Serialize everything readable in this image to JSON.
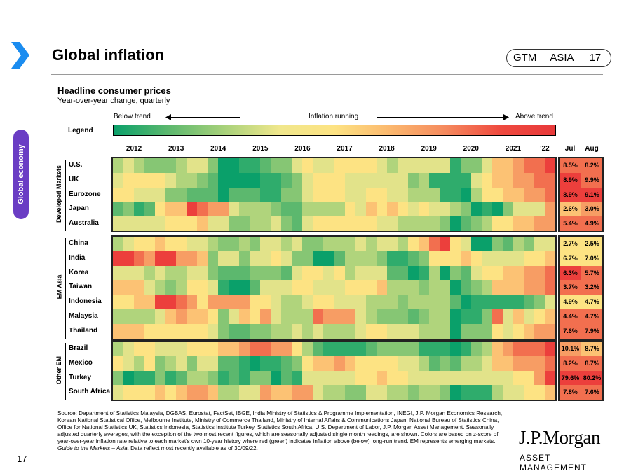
{
  "page": {
    "title": "Global inflation",
    "badge": [
      "GTM",
      "ASIA",
      "17"
    ],
    "side_tab": "Global economy",
    "page_number": "17",
    "logo": "J.P.Morgan",
    "logo_sub": "ASSET MANAGEMENT"
  },
  "chart_data": {
    "type": "heatmap",
    "title": "Headline consumer prices",
    "subtitle": "Year-over-year change, quarterly",
    "legend": {
      "label": "Legend",
      "left_text": "Below trend",
      "center_text": "Inflation running",
      "right_text": "Above trend",
      "scale_note": "0 = deep green (far below trend), 5 = neutral yellow, 10 = deep red (far above trend)"
    },
    "year_labels": [
      "2012",
      "2013",
      "2014",
      "2015",
      "2016",
      "2017",
      "2018",
      "2019",
      "2020",
      "2021",
      "'22"
    ],
    "recent_headers": [
      "Jul",
      "Aug"
    ],
    "columns": "Quarterly 2012Q1-2022Q2 (42 quarters)",
    "groups": [
      {
        "name": "Developed Markets",
        "rows": [
          {
            "name": "U.S.",
            "levels": [
              4,
              5,
              4,
              3,
              3,
              3,
              4,
              5,
              5,
              3,
              0,
              0,
              1,
              1,
              2,
              3,
              3,
              5,
              6,
              5,
              5,
              6,
              6,
              6,
              6,
              5,
              4,
              5,
              5,
              5,
              5,
              5,
              1,
              3,
              3,
              5,
              7,
              7,
              8,
              9,
              9,
              10
            ],
            "jul": "8.5%",
            "aug": "8.2%",
            "jul_level": 9,
            "aug_level": 9
          },
          {
            "name": "UK",
            "levels": [
              5,
              6,
              6,
              6,
              6,
              5,
              4,
              4,
              3,
              2,
              0,
              0,
              0,
              0,
              1,
              1,
              2,
              3,
              5,
              6,
              6,
              6,
              5,
              5,
              5,
              5,
              5,
              5,
              3,
              4,
              1,
              1,
              1,
              1,
              5,
              6,
              7,
              7,
              8,
              8,
              9,
              9
            ],
            "jul": "8.9%",
            "aug": "9.9%",
            "jul_level": 10,
            "aug_level": 9
          },
          {
            "name": "Eurozone",
            "levels": [
              6,
              6,
              5,
              5,
              5,
              3,
              3,
              2,
              2,
              2,
              0,
              2,
              2,
              2,
              1,
              1,
              3,
              3,
              5,
              6,
              6,
              6,
              5,
              5,
              6,
              6,
              5,
              5,
              4,
              4,
              4,
              1,
              1,
              0,
              4,
              6,
              6,
              7,
              7,
              8,
              8,
              9
            ],
            "jul": "8.9%",
            "aug": "9.1%",
            "jul_level": 10,
            "aug_level": 10
          },
          {
            "name": "Japan",
            "levels": [
              2,
              3,
              1,
              2,
              6,
              7,
              7,
              10,
              9,
              8,
              8,
              5,
              4,
              4,
              4,
              3,
              2,
              2,
              4,
              4,
              4,
              4,
              6,
              5,
              7,
              6,
              7,
              6,
              5,
              6,
              5,
              5,
              4,
              3,
              0,
              1,
              0,
              3,
              5,
              5,
              5,
              8
            ],
            "jul": "2.6%",
            "aug": "3.0%",
            "jul_level": 7,
            "aug_level": 8
          },
          {
            "name": "Australia",
            "levels": [
              5,
              5,
              5,
              5,
              5,
              6,
              6,
              6,
              7,
              5,
              5,
              3,
              3,
              4,
              4,
              5,
              3,
              2,
              5,
              6,
              6,
              6,
              6,
              6,
              6,
              5,
              5,
              4,
              4,
              4,
              4,
              3,
              0,
              2,
              3,
              4,
              6,
              6,
              7,
              7,
              8,
              8
            ],
            "jul": "5.4%",
            "aug": "4.9%",
            "jul_level": 9,
            "aug_level": 9
          }
        ]
      },
      {
        "name": "EM Asia",
        "rows": [
          {
            "name": "China",
            "levels": [
              4,
              5,
              6,
              6,
              7,
              6,
              6,
              5,
              5,
              4,
              3,
              3,
              4,
              3,
              5,
              5,
              4,
              5,
              3,
              3,
              4,
              4,
              4,
              5,
              4,
              5,
              5,
              4,
              6,
              7,
              9,
              10,
              6,
              5,
              0,
              0,
              3,
              2,
              4,
              3,
              5,
              5
            ],
            "jul": "2.7%",
            "aug": "2.5%",
            "jul_level": 6,
            "aug_level": 6
          },
          {
            "name": "India",
            "levels": [
              10,
              10,
              9,
              8,
              10,
              10,
              8,
              8,
              7,
              3,
              5,
              5,
              3,
              5,
              5,
              6,
              5,
              3,
              3,
              0,
              0,
              2,
              4,
              4,
              4,
              3,
              1,
              1,
              2,
              3,
              6,
              6,
              6,
              7,
              6,
              5,
              5,
              5,
              5,
              6,
              6,
              7
            ],
            "jul": "6.7%",
            "aug": "7.0%",
            "jul_level": 6,
            "aug_level": 6
          },
          {
            "name": "Korea",
            "levels": [
              5,
              5,
              5,
              4,
              5,
              4,
              4,
              5,
              5,
              3,
              2,
              2,
              2,
              3,
              3,
              3,
              2,
              5,
              6,
              6,
              5,
              6,
              4,
              5,
              5,
              5,
              2,
              2,
              0,
              1,
              4,
              0,
              3,
              2,
              5,
              6,
              6,
              7,
              7,
              8,
              8,
              9
            ],
            "jul": "6.3%",
            "aug": "5.7%",
            "jul_level": 10,
            "aug_level": 9
          },
          {
            "name": "Taiwan",
            "levels": [
              7,
              7,
              7,
              5,
              4,
              3,
              4,
              6,
              6,
              5,
              1,
              0,
              0,
              2,
              5,
              5,
              5,
              6,
              6,
              5,
              5,
              5,
              6,
              6,
              6,
              7,
              4,
              4,
              4,
              3,
              4,
              4,
              0,
              2,
              3,
              4,
              7,
              7,
              7,
              8,
              8,
              9
            ],
            "jul": "3.7%",
            "aug": "3.2%",
            "jul_level": 9,
            "aug_level": 9
          },
          {
            "name": "Indonesia",
            "levels": [
              6,
              6,
              7,
              7,
              10,
              10,
              9,
              8,
              6,
              8,
              8,
              8,
              8,
              6,
              6,
              5,
              4,
              4,
              5,
              6,
              6,
              5,
              5,
              5,
              4,
              4,
              4,
              3,
              4,
              4,
              4,
              4,
              2,
              0,
              1,
              1,
              1,
              1,
              1,
              2,
              3,
              5
            ],
            "jul": "4.9%",
            "aug": "4.7%",
            "jul_level": 6,
            "aug_level": 6
          },
          {
            "name": "Malaysia",
            "levels": [
              4,
              4,
              4,
              4,
              5,
              7,
              8,
              7,
              7,
              6,
              3,
              5,
              7,
              6,
              8,
              5,
              4,
              4,
              4,
              9,
              8,
              8,
              8,
              5,
              4,
              3,
              3,
              3,
              2,
              3,
              4,
              4,
              0,
              1,
              1,
              3,
              9,
              5,
              7,
              5,
              6,
              7
            ],
            "jul": "4.4%",
            "aug": "4.7%",
            "jul_level": 9,
            "aug_level": 9
          },
          {
            "name": "Thailand",
            "levels": [
              7,
              7,
              7,
              6,
              6,
              6,
              6,
              6,
              6,
              5,
              3,
              2,
              2,
              3,
              3,
              4,
              4,
              5,
              4,
              5,
              4,
              4,
              4,
              5,
              6,
              6,
              5,
              5,
              5,
              4,
              4,
              4,
              0,
              3,
              3,
              3,
              6,
              5,
              6,
              7,
              8,
              8
            ],
            "jul": "7.6%",
            "aug": "7.9%",
            "jul_level": 9,
            "aug_level": 9
          }
        ]
      },
      {
        "name": "Other EM",
        "rows": [
          {
            "name": "Brazil",
            "levels": [
              4,
              5,
              6,
              6,
              5,
              5,
              5,
              6,
              6,
              6,
              7,
              7,
              8,
              9,
              9,
              8,
              8,
              6,
              4,
              2,
              1,
              1,
              1,
              1,
              2,
              3,
              3,
              3,
              3,
              1,
              1,
              1,
              0,
              1,
              3,
              4,
              7,
              8,
              9,
              9,
              9,
              10
            ],
            "jul": "10.1%",
            "aug": "8.7%",
            "jul_level": 8,
            "aug_level": 7
          },
          {
            "name": "Mexico",
            "levels": [
              6,
              5,
              4,
              6,
              3,
              4,
              5,
              3,
              5,
              5,
              2,
              2,
              1,
              0,
              1,
              1,
              2,
              3,
              6,
              7,
              7,
              8,
              7,
              6,
              6,
              6,
              6,
              5,
              5,
              4,
              2,
              3,
              2,
              4,
              4,
              5,
              7,
              7,
              8,
              8,
              8,
              9
            ],
            "jul": "8.2%",
            "aug": "8.7%",
            "jul_level": 9,
            "aug_level": 9
          },
          {
            "name": "Turkey",
            "levels": [
              3,
              0,
              1,
              1,
              3,
              1,
              2,
              4,
              4,
              3,
              1,
              2,
              1,
              3,
              3,
              0,
              2,
              1,
              5,
              5,
              5,
              5,
              5,
              6,
              6,
              7,
              6,
              6,
              5,
              5,
              5,
              5,
              5,
              5,
              5,
              5,
              5,
              5,
              6,
              6,
              8,
              10
            ],
            "jul": "79.6%",
            "aug": "80.2%",
            "jul_level": 10,
            "aug_level": 10
          },
          {
            "name": "South Africa",
            "levels": [
              5,
              6,
              6,
              6,
              7,
              6,
              7,
              8,
              8,
              7,
              4,
              4,
              5,
              5,
              8,
              7,
              7,
              8,
              8,
              5,
              4,
              4,
              3,
              3,
              5,
              5,
              4,
              4,
              3,
              4,
              4,
              3,
              0,
              1,
              1,
              1,
              4,
              5,
              5,
              6,
              6,
              7
            ],
            "jul": "7.8%",
            "aug": "7.6%",
            "jul_level": 9,
            "aug_level": 9
          }
        ]
      }
    ]
  },
  "footnote": {
    "source": "Source: Department of Statistics Malaysia, DGBAS, Eurostat, FactSet, IBGE, India Ministry of Statistics & Programme Implementation, INEGI, J.P. Morgan Economics Research, Korean National Statistical Office, Melbourne Institute, Ministry of Commerce Thailand, Ministry of Internal Affairs & Communications Japan, National Bureau of Statistics China, Office for National Statistics UK, Statistics Indonesia, Statistics Institute Turkey, Statistics South Africa, U.S. Department of Labor, J.P. Morgan Asset Management. Seasonally adjusted quarterly averages, with the exception of the two most recent figures, which are seasonally adjusted single month readings, are shown. Colors are based on z-score of year-over-year inflation rate relative to each market's own 10-year history where red (green) indicates inflation above (below) long-run trend. EM represents emerging markets.",
    "guide": "Guide to the Markets – Asia",
    "asof": ". Data reflect most recently available as of 30/09/22."
  }
}
